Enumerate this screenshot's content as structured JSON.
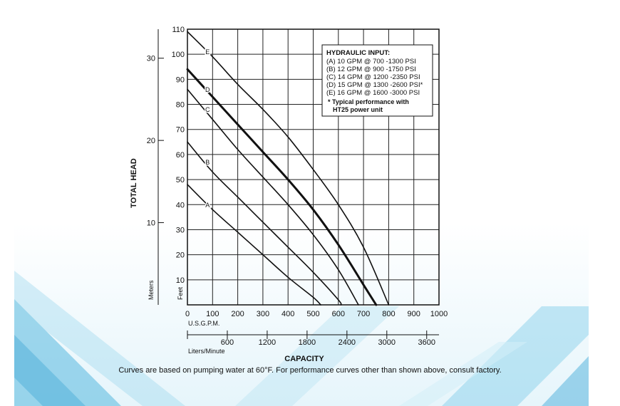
{
  "chart_data": {
    "type": "line",
    "xlabel": "CAPACITY",
    "ylabel": "TOTAL HEAD",
    "x_unit_label": "U.S.G.P.M.",
    "x_ticks": [
      0,
      100,
      200,
      300,
      400,
      500,
      600,
      700,
      800,
      900,
      1000
    ],
    "xlim": [
      0,
      1000
    ],
    "secondary_x_unit_label": "Liters/Minute",
    "secondary_x_ticks": [
      600,
      1200,
      1800,
      2400,
      3000,
      3600
    ],
    "y_unit_label": "Feet",
    "y_ticks": [
      10,
      20,
      30,
      40,
      50,
      60,
      70,
      80,
      90,
      100,
      110
    ],
    "ylim": [
      0,
      110
    ],
    "secondary_y_unit_label": "Meters",
    "secondary_y_ticks": [
      10,
      20,
      30
    ],
    "grid": true,
    "series": [
      {
        "name": "A",
        "x": [
          0,
          100,
          200,
          300,
          400,
          500,
          530
        ],
        "y": [
          48,
          38,
          29,
          20,
          11,
          3,
          0
        ]
      },
      {
        "name": "B",
        "x": [
          0,
          100,
          200,
          300,
          400,
          500,
          600,
          610
        ],
        "y": [
          65,
          53,
          43,
          33,
          23,
          13,
          2,
          0
        ]
      },
      {
        "name": "C",
        "x": [
          0,
          100,
          200,
          300,
          400,
          500,
          600,
          680
        ],
        "y": [
          86,
          74,
          62,
          51,
          40,
          28,
          14,
          0
        ]
      },
      {
        "name": "D",
        "x": [
          0,
          100,
          200,
          300,
          400,
          500,
          600,
          700,
          750
        ],
        "y": [
          94,
          83,
          72,
          61,
          50,
          38,
          24,
          8,
          0
        ]
      },
      {
        "name": "E",
        "x": [
          0,
          100,
          200,
          300,
          400,
          500,
          600,
          700,
          800
        ],
        "y": [
          109,
          99,
          88,
          78,
          67,
          54,
          40,
          23,
          0
        ]
      }
    ],
    "legend": {
      "title": "HYDRAULIC INPUT:",
      "entries": [
        "(A) 10 GPM @ 700 -1300 PSI",
        "(B) 12 GPM @ 900 -1750 PSI",
        "(C) 14 GPM @ 1200 -2350 PSI",
        "(D) 15 GPM @ 1300 -2600 PSI*",
        "(E) 16 GPM @ 1600 -3000 PSI"
      ],
      "note_line1": "* Typical performance  with",
      "note_line2": "HT25 power unit",
      "placement": "top-right"
    },
    "footnote": "Curves are based on pumping water at 60°F. For performance curves other than shown above, consult factory."
  },
  "colors": {
    "line": "#111111",
    "grid": "#222222",
    "background_accent": "#4fb3dc"
  }
}
